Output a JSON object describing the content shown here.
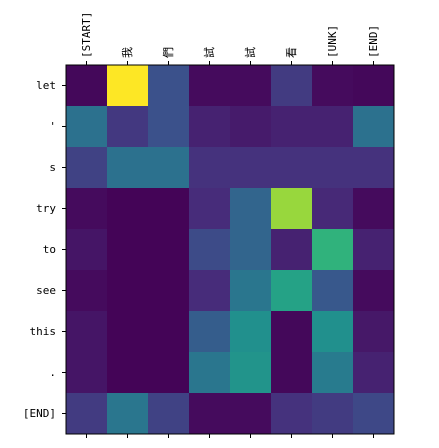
{
  "chart_data": {
    "type": "heatmap",
    "title": "",
    "xlabel": "",
    "ylabel": "",
    "colormap": "viridis",
    "x_tick_position": "top",
    "x_categories": [
      "[START]",
      "我",
      "們",
      "試",
      "試",
      "看",
      "[UNK]",
      "[END]"
    ],
    "y_categories": [
      "let",
      "'",
      "s",
      "try",
      "to",
      "see",
      "this",
      ".",
      "[END]"
    ],
    "values": [
      [
        0.02,
        1.0,
        0.25,
        0.03,
        0.03,
        0.18,
        0.03,
        0.02
      ],
      [
        0.38,
        0.17,
        0.25,
        0.1,
        0.08,
        0.1,
        0.1,
        0.38
      ],
      [
        0.2,
        0.38,
        0.38,
        0.15,
        0.15,
        0.15,
        0.15,
        0.15
      ],
      [
        0.03,
        0.01,
        0.01,
        0.13,
        0.33,
        0.85,
        0.12,
        0.03
      ],
      [
        0.06,
        0.01,
        0.01,
        0.23,
        0.33,
        0.1,
        0.65,
        0.1
      ],
      [
        0.03,
        0.01,
        0.01,
        0.13,
        0.4,
        0.58,
        0.28,
        0.03
      ],
      [
        0.06,
        0.01,
        0.01,
        0.3,
        0.5,
        0.02,
        0.5,
        0.07
      ],
      [
        0.06,
        0.01,
        0.01,
        0.4,
        0.52,
        0.02,
        0.42,
        0.1
      ],
      [
        0.18,
        0.4,
        0.2,
        0.03,
        0.03,
        0.15,
        0.18,
        0.22
      ]
    ]
  }
}
